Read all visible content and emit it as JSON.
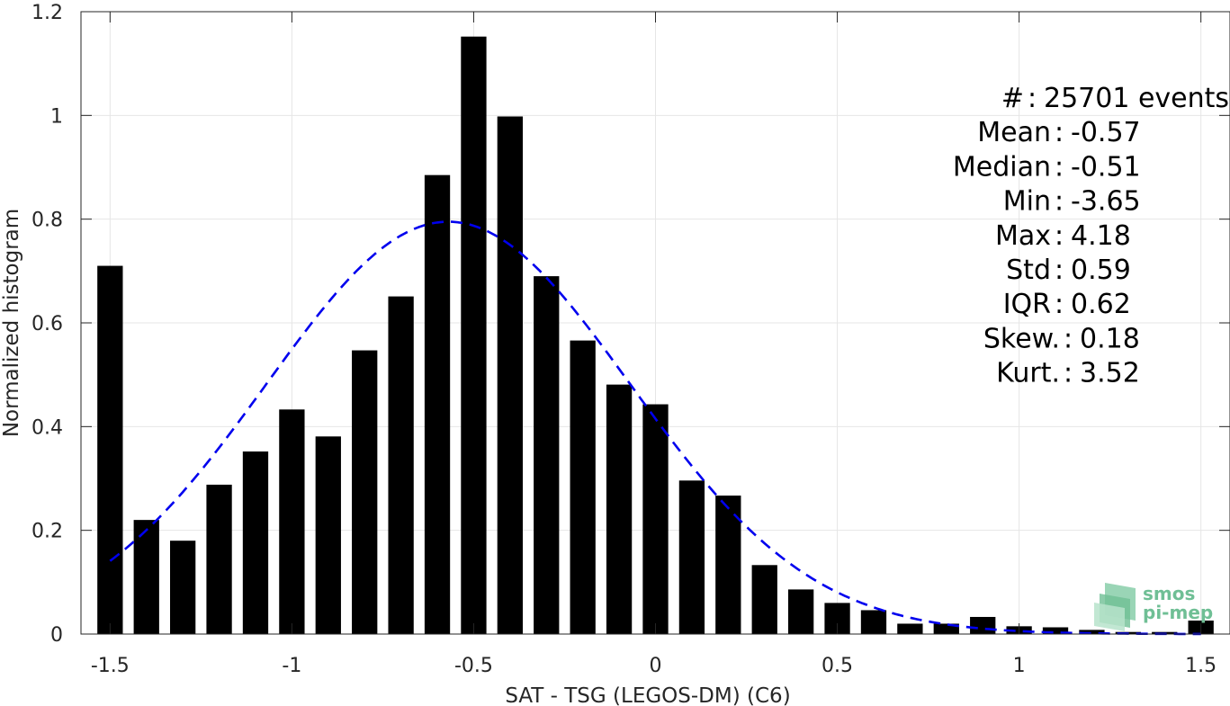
{
  "chart_data": {
    "type": "bar",
    "xlabel": "SAT - TSG (LEGOS-DM) (C6)",
    "ylabel": "Normalized histogram",
    "xlim": [
      -1.58,
      1.58
    ],
    "ylim": [
      0,
      1.2
    ],
    "xticks": [
      -1.5,
      -1,
      -0.5,
      0,
      0.5,
      1,
      1.5
    ],
    "xtick_labels": [
      "-1.5",
      "-1",
      "-0.5",
      "0",
      "0.5",
      "1",
      "1.5"
    ],
    "yticks": [
      0,
      0.2,
      0.4,
      0.6,
      0.8,
      1,
      1.2
    ],
    "ytick_labels": [
      "0",
      "0.2",
      "0.4",
      "0.6",
      "0.8",
      "1",
      "1.2"
    ],
    "grid": true,
    "bar_width": 0.07,
    "bars": {
      "x": [
        -1.5,
        -1.4,
        -1.3,
        -1.2,
        -1.1,
        -1.0,
        -0.9,
        -0.8,
        -0.7,
        -0.6,
        -0.5,
        -0.4,
        -0.3,
        -0.2,
        -0.1,
        0.0,
        0.1,
        0.2,
        0.3,
        0.4,
        0.5,
        0.6,
        0.7,
        0.8,
        0.9,
        1.0,
        1.1,
        1.2,
        1.3,
        1.4,
        1.5
      ],
      "values": [
        0.71,
        0.22,
        0.18,
        0.288,
        0.352,
        0.433,
        0.381,
        0.547,
        0.651,
        0.885,
        1.152,
        0.998,
        0.69,
        0.566,
        0.481,
        0.443,
        0.296,
        0.267,
        0.133,
        0.086,
        0.06,
        0.046,
        0.02,
        0.02,
        0.033,
        0.015,
        0.013,
        0.008,
        0.004,
        0.004,
        0.026
      ],
      "color": "#000000"
    },
    "fit": {
      "type": "gaussian",
      "style": "dashed",
      "color": "#0000ee",
      "mean": -0.57,
      "std": 0.5,
      "peak": 0.795,
      "x_range": [
        -1.5,
        1.5
      ]
    },
    "annotations": [
      {
        "key": "#  ",
        "value": "25701 events"
      },
      {
        "key": "Mean",
        "value": "-0.57"
      },
      {
        "key": "Median",
        "value": "-0.51"
      },
      {
        "key": "Min",
        "value": "-3.65"
      },
      {
        "key": "Max",
        "value": "4.18"
      },
      {
        "key": "Std",
        "value": "0.59"
      },
      {
        "key": "IQR",
        "value": "0.62"
      },
      {
        "key": "Skew.",
        "value": "0.18"
      },
      {
        "key": "Kurt.",
        "value": "3.52"
      }
    ]
  },
  "logo": {
    "line1": "smos",
    "line2": "pi-mep",
    "color": "#6fbf95"
  }
}
